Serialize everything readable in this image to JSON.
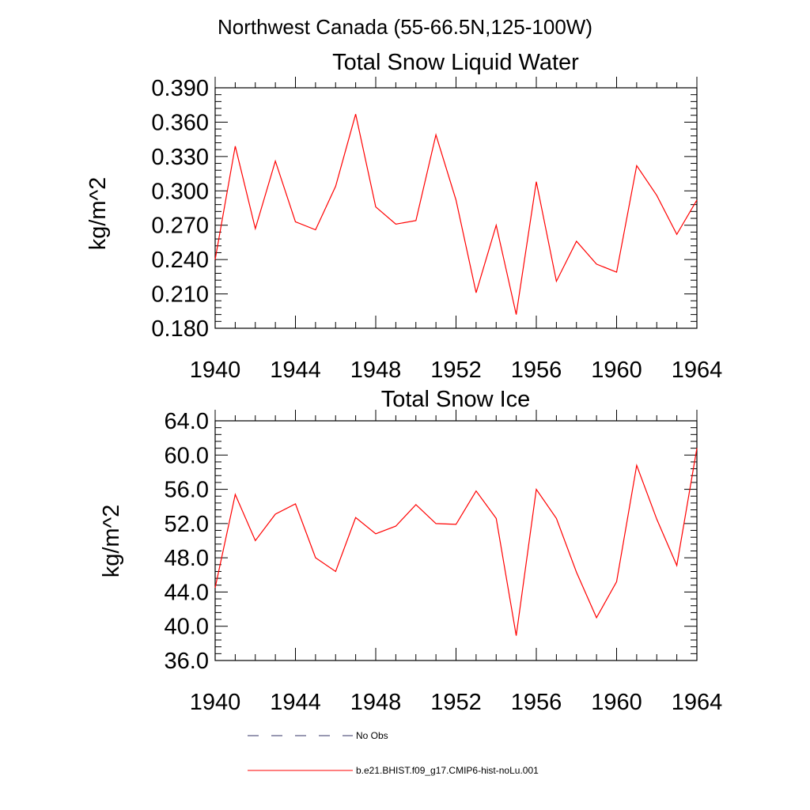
{
  "figure": {
    "title": "Northwest Canada (55-66.5N,125-100W)"
  },
  "chart_data": [
    {
      "type": "line",
      "title": "Total Snow Liquid Water",
      "ylabel": "kg/m^2",
      "xlabel": "",
      "xlim": [
        1940,
        1964
      ],
      "ylim": [
        0.18,
        0.39
      ],
      "x_ticks": [
        1940,
        1944,
        1948,
        1952,
        1956,
        1960,
        1964
      ],
      "y_ticks": [
        "0.180",
        "0.210",
        "0.240",
        "0.270",
        "0.300",
        "0.330",
        "0.360",
        "0.390"
      ],
      "grid": false,
      "series": [
        {
          "name": "b.e21.BHIST.f09_g17.CMIP6-hist-noLu.001",
          "color": "#ff0000",
          "x": [
            1940,
            1941,
            1942,
            1943,
            1944,
            1945,
            1946,
            1947,
            1948,
            1949,
            1950,
            1951,
            1952,
            1953,
            1954,
            1955,
            1956,
            1957,
            1958,
            1959,
            1960,
            1961,
            1962,
            1963,
            1964
          ],
          "values": [
            0.24,
            0.339,
            0.267,
            0.326,
            0.273,
            0.266,
            0.304,
            0.367,
            0.286,
            0.271,
            0.274,
            0.349,
            0.292,
            0.211,
            0.27,
            0.192,
            0.308,
            0.221,
            0.256,
            0.236,
            0.229,
            0.322,
            0.296,
            0.262,
            0.292
          ]
        }
      ]
    },
    {
      "type": "line",
      "title": "Total Snow Ice",
      "ylabel": "kg/m^2",
      "xlabel": "",
      "xlim": [
        1940,
        1964
      ],
      "ylim": [
        36.0,
        64.0
      ],
      "x_ticks": [
        1940,
        1944,
        1948,
        1952,
        1956,
        1960,
        1964
      ],
      "y_ticks": [
        "36.0",
        "40.0",
        "44.0",
        "48.0",
        "52.0",
        "56.0",
        "60.0",
        "64.0"
      ],
      "grid": false,
      "series": [
        {
          "name": "b.e21.BHIST.f09_g17.CMIP6-hist-noLu.001",
          "color": "#ff0000",
          "x": [
            1940,
            1941,
            1942,
            1943,
            1944,
            1945,
            1946,
            1947,
            1948,
            1949,
            1950,
            1951,
            1952,
            1953,
            1954,
            1955,
            1956,
            1957,
            1958,
            1959,
            1960,
            1961,
            1962,
            1963,
            1964
          ],
          "values": [
            44.5,
            55.4,
            50.0,
            53.1,
            54.3,
            48.0,
            46.4,
            52.7,
            50.8,
            51.7,
            54.2,
            52.0,
            51.9,
            55.8,
            52.6,
            38.9,
            56.0,
            52.6,
            46.3,
            41.0,
            45.2,
            58.8,
            52.5,
            47.1,
            60.8
          ]
        }
      ]
    }
  ],
  "legend": {
    "items": [
      {
        "label": "No Obs",
        "color": "#333366",
        "style": "dashed"
      },
      {
        "label": "b.e21.BHIST.f09_g17.CMIP6-hist-noLu.001",
        "color": "#ff0000",
        "style": "solid"
      }
    ]
  }
}
